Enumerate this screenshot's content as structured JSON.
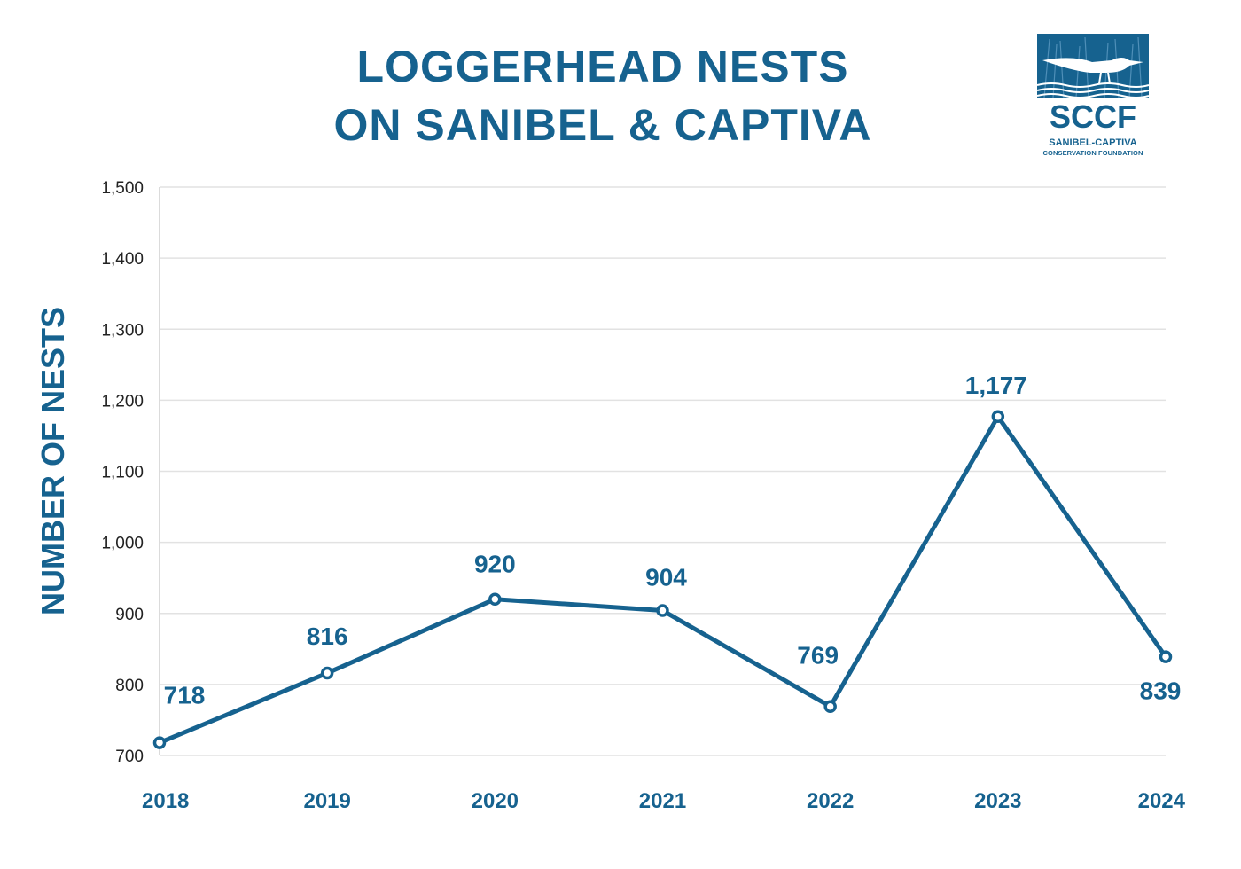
{
  "title_lines": [
    "LOGGERHEAD NESTS",
    "ON SANIBEL & CAPTIVA"
  ],
  "logo": {
    "wordmark": "SCCF",
    "tagline_1": "SANIBEL-CAPTIVA",
    "tagline_2": "CONSERVATION FOUNDATION"
  },
  "colors": {
    "accent": "#16628f",
    "grid": "#e2e2e2",
    "tick": "#222222"
  },
  "chart_data": {
    "type": "line",
    "title": "LOGGERHEAD NESTS ON SANIBEL & CAPTIVA",
    "xlabel": "",
    "ylabel": "NUMBER OF NESTS",
    "categories": [
      "2018",
      "2019",
      "2020",
      "2021",
      "2022",
      "2023",
      "2024"
    ],
    "series": [
      {
        "values": [
          718,
          816,
          920,
          904,
          769,
          1177,
          839
        ]
      }
    ],
    "data_labels": [
      "718",
      "816",
      "920",
      "904",
      "769",
      "1,177",
      "839"
    ],
    "yticks": [
      "700",
      "800",
      "900",
      "1,000",
      "1,100",
      "1,200",
      "1,300",
      "1,400",
      "1,500"
    ],
    "ylim": [
      700,
      1500
    ],
    "grid": true,
    "legend": "none"
  }
}
